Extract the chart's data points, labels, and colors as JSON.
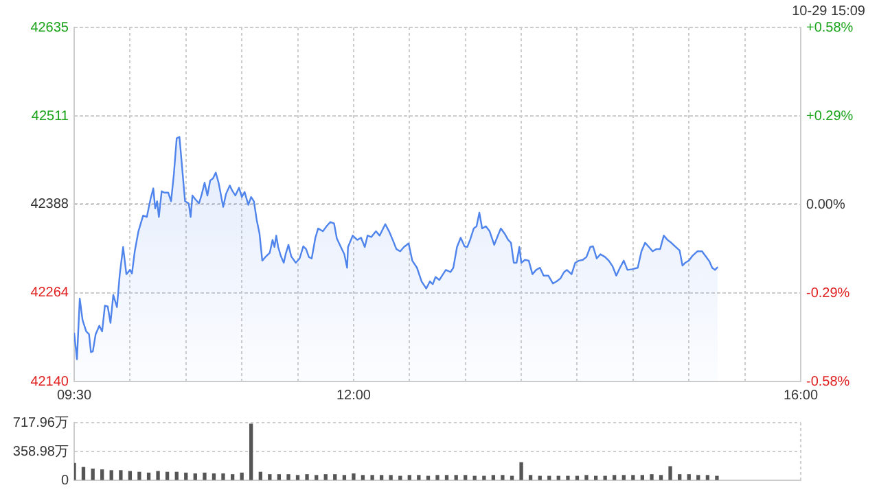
{
  "chart_data": [
    {
      "type": "area",
      "annotations": [
        "10-29 15:09"
      ],
      "color": "#4f84ec",
      "grid": true,
      "marker": "none",
      "line_style": "solid",
      "x": [
        9.5,
        9.525,
        9.55,
        9.575,
        9.608,
        9.633,
        9.65,
        9.667,
        9.692,
        9.725,
        9.75,
        9.775,
        9.8,
        9.825,
        9.85,
        9.883,
        9.908,
        9.938,
        9.967,
        10.0,
        10.017,
        10.042,
        10.075,
        10.117,
        10.15,
        10.183,
        10.208,
        10.225,
        10.242,
        10.258,
        10.283,
        10.308,
        10.342,
        10.367,
        10.392,
        10.417,
        10.442,
        10.467,
        10.492,
        10.525,
        10.542,
        10.558,
        10.583,
        10.617,
        10.642,
        10.667,
        10.692,
        10.717,
        10.742,
        10.767,
        10.792,
        10.808,
        10.833,
        10.858,
        10.892,
        10.917,
        10.942,
        10.975,
        11.0,
        11.025,
        11.058,
        11.083,
        11.108,
        11.133,
        11.158,
        11.183,
        11.217,
        11.25,
        11.275,
        11.292,
        11.308,
        11.325,
        11.35,
        11.375,
        11.392,
        11.417,
        11.442,
        11.483,
        11.517,
        11.55,
        11.575,
        11.6,
        11.625,
        11.658,
        11.683,
        11.725,
        11.758,
        11.792,
        11.825,
        11.85,
        11.883,
        11.917,
        11.942,
        11.95,
        11.992,
        12.033,
        12.067,
        12.1,
        12.125,
        12.158,
        12.2,
        12.233,
        12.283,
        12.317,
        12.35,
        12.383,
        12.417,
        12.45,
        12.492,
        12.525,
        12.567,
        12.608,
        12.65,
        12.683,
        12.708,
        12.733,
        12.767,
        12.8,
        12.825,
        12.867,
        12.892,
        12.925,
        12.958,
        12.992,
        13.017,
        13.042,
        13.075,
        13.1,
        13.125,
        13.15,
        13.183,
        13.217,
        13.258,
        13.283,
        13.317,
        13.35,
        13.383,
        13.408,
        13.433,
        13.458,
        13.483,
        13.5,
        13.533,
        13.567,
        13.6,
        13.633,
        13.667,
        13.7,
        13.742,
        13.783,
        13.817,
        13.85,
        13.883,
        13.908,
        13.95,
        13.983,
        14.017,
        14.05,
        14.083,
        14.117,
        14.142,
        14.175,
        14.208,
        14.25,
        14.283,
        14.317,
        14.35,
        14.383,
        14.417,
        14.45,
        14.492,
        14.542,
        14.575,
        14.608,
        14.642,
        14.675,
        14.708,
        14.742,
        14.775,
        14.808,
        14.842,
        14.875,
        14.917,
        14.942,
        14.967,
        15.0,
        15.033,
        15.075,
        15.117,
        15.15,
        15.183,
        15.208,
        15.233,
        15.258
      ],
      "values": [
        42208,
        42171,
        42256,
        42226,
        42210,
        42206,
        42181,
        42182,
        42206,
        42218,
        42210,
        42246,
        42245,
        42222,
        42261,
        42244,
        42290,
        42328,
        42290,
        42296,
        42291,
        42322,
        42350,
        42372,
        42370,
        42395,
        42410,
        42382,
        42392,
        42370,
        42406,
        42404,
        42404,
        42392,
        42430,
        42480,
        42482,
        42437,
        42392,
        42389,
        42370,
        42400,
        42395,
        42389,
        42402,
        42418,
        42400,
        42421,
        42424,
        42432,
        42418,
        42405,
        42384,
        42402,
        42414,
        42406,
        42400,
        42411,
        42398,
        42405,
        42387,
        42398,
        42392,
        42366,
        42347,
        42309,
        42315,
        42320,
        42338,
        42328,
        42344,
        42328,
        42315,
        42306,
        42318,
        42331,
        42315,
        42306,
        42312,
        42329,
        42325,
        42314,
        42312,
        42341,
        42354,
        42350,
        42357,
        42363,
        42361,
        42340,
        42329,
        42318,
        42299,
        42328,
        42344,
        42338,
        42341,
        42328,
        42344,
        42342,
        42350,
        42344,
        42360,
        42350,
        42338,
        42325,
        42322,
        42328,
        42333,
        42309,
        42299,
        42280,
        42270,
        42280,
        42276,
        42286,
        42282,
        42290,
        42296,
        42293,
        42299,
        42328,
        42341,
        42329,
        42328,
        42338,
        42354,
        42357,
        42376,
        42354,
        42357,
        42350,
        42331,
        42341,
        42354,
        42347,
        42338,
        42334,
        42306,
        42306,
        42328,
        42306,
        42310,
        42309,
        42290,
        42296,
        42299,
        42288,
        42288,
        42277,
        42280,
        42284,
        42293,
        42296,
        42290,
        42306,
        42309,
        42310,
        42314,
        42328,
        42329,
        42312,
        42318,
        42314,
        42309,
        42301,
        42288,
        42299,
        42309,
        42296,
        42297,
        42299,
        42322,
        42334,
        42328,
        42322,
        42325,
        42325,
        42344,
        42338,
        42334,
        42329,
        42323,
        42302,
        42306,
        42309,
        42316,
        42322,
        42322,
        42315,
        42308,
        42299,
        42296,
        42300
      ],
      "xlim": [
        9.5,
        16
      ],
      "xticks": [
        {
          "value": 9.5,
          "label": "09:30"
        },
        {
          "value": 10,
          "label": null
        },
        {
          "value": 10.5,
          "label": null
        },
        {
          "value": 11,
          "label": null
        },
        {
          "value": 11.5,
          "label": null
        },
        {
          "value": 12,
          "label": "12:00"
        },
        {
          "value": 12.5,
          "label": null
        },
        {
          "value": 13,
          "label": null
        },
        {
          "value": 13.5,
          "label": null
        },
        {
          "value": 14,
          "label": null
        },
        {
          "value": 14.5,
          "label": null
        },
        {
          "value": 15,
          "label": null
        },
        {
          "value": 15.5,
          "label": null
        },
        {
          "value": 16,
          "label": "16:00"
        }
      ],
      "ylim": [
        42140,
        42635
      ],
      "yticks": [
        42140,
        42264,
        42388,
        42511,
        42635
      ],
      "y2lim": [
        -0.58,
        0.58
      ],
      "y2ticks": [
        {
          "value": -0.58,
          "label": "-0.58%"
        },
        {
          "value": -0.29,
          "label": "-0.29%"
        },
        {
          "value": 0,
          "label": "0.00%"
        },
        {
          "value": 0.29,
          "label": "+0.29%"
        },
        {
          "value": 0.58,
          "label": "+0.58%"
        }
      ]
    },
    {
      "type": "bar",
      "color": "#555555",
      "grid": true,
      "tick_labels": "y",
      "x": [
        9.5,
        9.583,
        9.667,
        9.75,
        9.833,
        9.917,
        10.0,
        10.083,
        10.167,
        10.25,
        10.333,
        10.417,
        10.5,
        10.583,
        10.667,
        10.75,
        10.833,
        10.917,
        11.0,
        11.083,
        11.167,
        11.25,
        11.333,
        11.417,
        11.5,
        11.583,
        11.667,
        11.75,
        11.833,
        11.917,
        12.0,
        12.083,
        12.167,
        12.25,
        12.333,
        12.417,
        12.5,
        12.583,
        12.667,
        12.75,
        12.833,
        12.917,
        13.0,
        13.083,
        13.167,
        13.25,
        13.333,
        13.417,
        13.5,
        13.583,
        13.667,
        13.75,
        13.833,
        13.917,
        14.0,
        14.083,
        14.167,
        14.25,
        14.333,
        14.417,
        14.5,
        14.583,
        14.667,
        14.75,
        14.833,
        14.917,
        15.0,
        15.083,
        15.167,
        15.25
      ],
      "values": [
        210,
        160,
        140,
        130,
        120,
        120,
        110,
        100,
        90,
        110,
        100,
        100,
        90,
        80,
        90,
        80,
        80,
        70,
        90,
        700,
        100,
        70,
        70,
        70,
        60,
        70,
        60,
        70,
        70,
        60,
        80,
        60,
        60,
        60,
        60,
        50,
        60,
        60,
        50,
        60,
        60,
        60,
        60,
        50,
        50,
        60,
        60,
        50,
        220,
        60,
        50,
        50,
        50,
        50,
        50,
        60,
        50,
        50,
        60,
        60,
        60,
        60,
        70,
        60,
        170,
        70,
        70,
        60,
        60,
        50
      ],
      "xlim": [
        9.5,
        16
      ],
      "xticks": [
        {
          "value": 9.5,
          "label": null
        },
        {
          "value": 16,
          "label": null
        }
      ],
      "ylim": [
        0,
        717.96
      ],
      "yticks": [
        0,
        {
          "value": 358.98,
          "label": "358.98万"
        },
        {
          "value": 717.96,
          "label": "717.96万"
        }
      ]
    }
  ]
}
